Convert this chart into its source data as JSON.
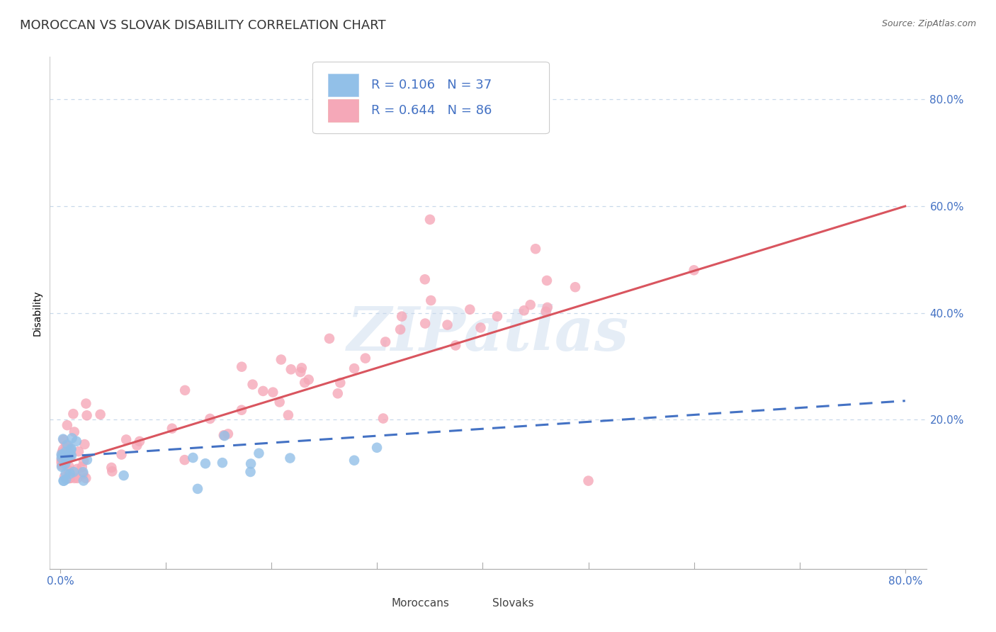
{
  "title": "MOROCCAN VS SLOVAK DISABILITY CORRELATION CHART",
  "source": "Source: ZipAtlas.com",
  "ylabel": "Disability",
  "xlim": [
    -0.01,
    0.82
  ],
  "ylim": [
    -0.08,
    0.88
  ],
  "ytick_positions": [
    0.2,
    0.4,
    0.6,
    0.8
  ],
  "ytick_labels": [
    "20.0%",
    "40.0%",
    "60.0%",
    "80.0%"
  ],
  "moroccan_color": "#92c0e8",
  "slovak_color": "#f5a8b8",
  "moroccan_line_color": "#4472c4",
  "slovak_line_color": "#d9555f",
  "R_moroccan": 0.106,
  "N_moroccan": 37,
  "R_slovak": 0.644,
  "N_slovak": 86,
  "watermark_text": "ZIPatlas",
  "background_color": "#ffffff",
  "grid_color": "#c8d8ea",
  "title_fontsize": 13,
  "axis_label_fontsize": 10,
  "tick_fontsize": 11,
  "legend_fontsize": 13,
  "source_fontsize": 9
}
